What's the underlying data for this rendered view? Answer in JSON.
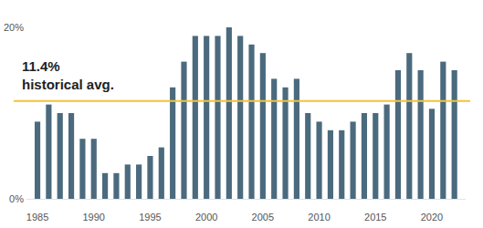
{
  "chart_data": {
    "type": "bar",
    "x": [
      1985,
      1986,
      1987,
      1988,
      1989,
      1990,
      1991,
      1992,
      1993,
      1994,
      1995,
      1996,
      1997,
      1998,
      1999,
      2000,
      2001,
      2002,
      2003,
      2004,
      2005,
      2006,
      2007,
      2008,
      2009,
      2010,
      2011,
      2012,
      2013,
      2014,
      2015,
      2016,
      2017,
      2018,
      2019,
      2020,
      2021,
      2022
    ],
    "values": [
      9,
      11,
      10,
      10,
      7,
      7,
      3,
      3,
      4,
      4,
      5,
      6,
      13,
      16,
      19,
      19,
      19,
      20,
      19,
      18,
      17,
      14,
      13,
      14,
      10,
      9,
      8,
      8,
      9,
      10,
      10,
      11,
      15,
      17,
      15,
      10.5,
      16,
      15
    ],
    "color": "#4b6a7e",
    "xlim": [
      1984,
      2023
    ],
    "xticks": [
      1985,
      1990,
      1995,
      2000,
      2005,
      2010,
      2015,
      2020
    ],
    "ylim": [
      0,
      20
    ],
    "yticks": [
      {
        "value": 0,
        "label": "0%"
      },
      {
        "value": 20,
        "label": "20%"
      }
    ],
    "grid": false,
    "annotations": [
      {
        "label": "11.4%",
        "text": "historical avg.",
        "value": 11.4,
        "color": "#f2c23a"
      }
    ]
  }
}
